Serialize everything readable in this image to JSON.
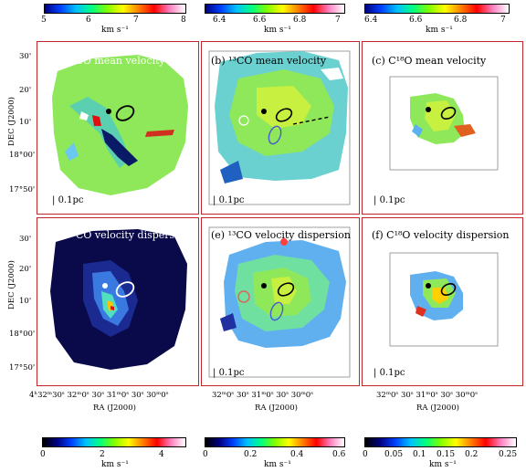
{
  "colorbars_top": [
    {
      "ticks": [
        "5",
        "6",
        "7",
        "8"
      ],
      "unit": "km s⁻¹"
    },
    {
      "ticks": [
        "6.4",
        "6.6",
        "6.8",
        "7"
      ],
      "unit": "km s⁻¹"
    },
    {
      "ticks": [
        "6.4",
        "6.6",
        "6.8",
        "7"
      ],
      "unit": "km s⁻¹"
    }
  ],
  "colorbars_bottom": [
    {
      "ticks": [
        "0",
        "2",
        "4"
      ],
      "unit": "km s⁻¹"
    },
    {
      "ticks": [
        "0",
        "0.2",
        "0.4",
        "0.6"
      ],
      "unit": "km s⁻¹"
    },
    {
      "ticks": [
        "0",
        "0.05",
        "0.1",
        "0.15",
        "0.2",
        "0.25"
      ],
      "unit": "km s⁻¹"
    }
  ],
  "panels": [
    {
      "label": "(a) ¹²CO mean velocity",
      "scale": "0.1pc"
    },
    {
      "label": "(b) ¹³CO mean velocity",
      "scale": "0.1pc"
    },
    {
      "label": "(c) C¹⁸O mean velocity",
      "scale": "0.1pc"
    },
    {
      "label": "(d) ¹²CO velocity dispersion",
      "scale": "0.1pc"
    },
    {
      "label": "(e) ¹³CO velocity dispersion",
      "scale": "0.1pc"
    },
    {
      "label": "(f) C¹⁸O velocity dispersion",
      "scale": "0.1pc"
    }
  ],
  "dec_axis": {
    "title": "DEC (J2000)",
    "ticks_top": [
      "30'",
      "20'",
      "10'",
      "18°00'",
      "17°50'"
    ],
    "ticks_bottom": [
      "30'",
      "20'",
      "10'",
      "18°00'",
      "17°50'"
    ]
  },
  "ra_axis": {
    "title": "RA (J2000)",
    "ticks_a": "4ʰ32ᵐ30ˢ 32ᵐ0ˢ 30ˢ 31ᵐ0ˢ 30ˢ 30ᵐ0ˢ",
    "ticks_b": "32ᵐ0ˢ 30ˢ 31ᵐ0ˢ 30ˢ 30ᵐ0ˢ",
    "ticks_c": "32ᵐ0ˢ 30ˢ 31ᵐ0ˢ 30ˢ 30ᵐ0ˢ"
  },
  "colors": {
    "frame": "#c0262a",
    "panel_a_bg": "#8ee85a",
    "panel_d_bg": "#0a0a4a"
  }
}
